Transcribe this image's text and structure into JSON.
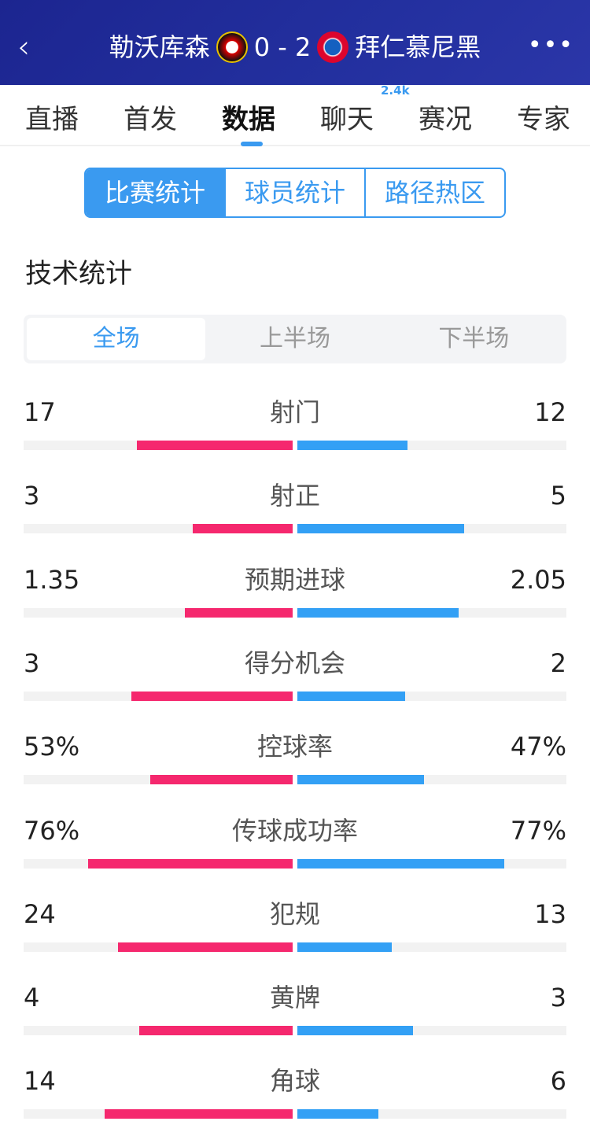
{
  "header": {
    "home": "勒沃库森",
    "score": "0 - 2",
    "away": "拜仁慕尼黑",
    "back_icon": "chevron-left-icon",
    "more_icon": "more-icon"
  },
  "tabs": [
    {
      "label": "直播"
    },
    {
      "label": "首发"
    },
    {
      "label": "数据",
      "active": true
    },
    {
      "label": "聊天",
      "badge": "2.4k"
    },
    {
      "label": "赛况"
    },
    {
      "label": "专家"
    }
  ],
  "segments": [
    "比赛统计",
    "球员统计",
    "路径热区"
  ],
  "section_title": "技术统计",
  "periods": [
    "全场",
    "上半场",
    "下半场"
  ],
  "colors": {
    "home": "#f5286e",
    "away": "#33a0f5",
    "header": "#1f2a9c"
  },
  "stats": [
    {
      "name": "射门",
      "home": "17",
      "away": "12",
      "home_fill": 0.58,
      "away_fill": 0.41
    },
    {
      "name": "射正",
      "home": "3",
      "away": "5",
      "home_fill": 0.37,
      "away_fill": 0.62
    },
    {
      "name": "预期进球",
      "home": "1.35",
      "away": "2.05",
      "home_fill": 0.4,
      "away_fill": 0.6
    },
    {
      "name": "得分机会",
      "home": "3",
      "away": "2",
      "home_fill": 0.6,
      "away_fill": 0.4
    },
    {
      "name": "控球率",
      "home": "53%",
      "away": "47%",
      "home_fill": 0.53,
      "away_fill": 0.47
    },
    {
      "name": "传球成功率",
      "home": "76%",
      "away": "77%",
      "home_fill": 0.76,
      "away_fill": 0.77
    },
    {
      "name": "犯规",
      "home": "24",
      "away": "13",
      "home_fill": 0.65,
      "away_fill": 0.35
    },
    {
      "name": "黄牌",
      "home": "4",
      "away": "3",
      "home_fill": 0.57,
      "away_fill": 0.43
    },
    {
      "name": "角球",
      "home": "14",
      "away": "6",
      "home_fill": 0.7,
      "away_fill": 0.3
    }
  ]
}
